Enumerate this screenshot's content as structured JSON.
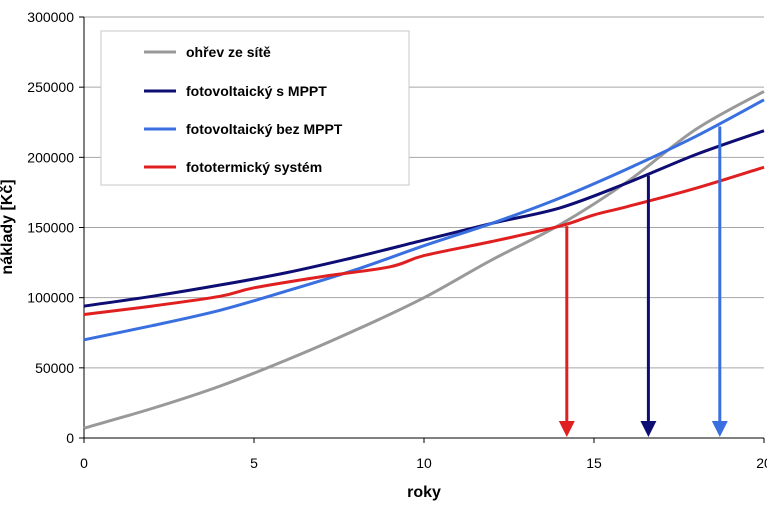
{
  "chart_data": {
    "type": "line",
    "xlabel": "roky",
    "ylabel": "náklady [Kč]",
    "xlim": [
      0,
      20
    ],
    "ylim": [
      0,
      300000
    ],
    "xticks": [
      "0",
      "5",
      "10",
      "15",
      "20"
    ],
    "yticks": [
      "0",
      "50000",
      "100000",
      "150000",
      "200000",
      "250000",
      "300000"
    ],
    "grid": "horizontal",
    "legend_position": "top-left",
    "series": [
      {
        "name": "ohřev ze sítě",
        "color": "#999999",
        "points": [
          [
            0,
            7000
          ],
          [
            2,
            21000
          ],
          [
            4,
            37000
          ],
          [
            6,
            56000
          ],
          [
            8,
            77000
          ],
          [
            10,
            100000
          ],
          [
            12,
            127000
          ],
          [
            14,
            152000
          ],
          [
            16,
            183000
          ],
          [
            18,
            220000
          ],
          [
            20,
            247000
          ]
        ]
      },
      {
        "name": "fotovoltaický s MPPT",
        "color": "#0d0d73",
        "points": [
          [
            0,
            94000
          ],
          [
            2,
            101000
          ],
          [
            4,
            109000
          ],
          [
            6,
            118000
          ],
          [
            8,
            129000
          ],
          [
            10,
            141000
          ],
          [
            12,
            153000
          ],
          [
            14,
            164000
          ],
          [
            16,
            182000
          ],
          [
            18,
            202000
          ],
          [
            20,
            219000
          ]
        ]
      },
      {
        "name": "fotovoltaický bez MPPT",
        "color": "#3a6fe0",
        "points": [
          [
            0,
            70000
          ],
          [
            2,
            80000
          ],
          [
            4,
            91000
          ],
          [
            6,
            105000
          ],
          [
            8,
            120000
          ],
          [
            10,
            137000
          ],
          [
            12,
            153000
          ],
          [
            14,
            171000
          ],
          [
            16,
            192000
          ],
          [
            18,
            215000
          ],
          [
            20,
            241000
          ]
        ]
      },
      {
        "name": "fototermický systém",
        "color": "#e02020",
        "points": [
          [
            0,
            88000
          ],
          [
            2,
            94000
          ],
          [
            4,
            101000
          ],
          [
            5,
            107000
          ],
          [
            7,
            115000
          ],
          [
            9,
            122000
          ],
          [
            10,
            130000
          ],
          [
            12,
            140000
          ],
          [
            14,
            151000
          ],
          [
            15,
            159000
          ],
          [
            16,
            165000
          ],
          [
            18,
            178000
          ],
          [
            20,
            193000
          ]
        ]
      }
    ],
    "arrows": [
      {
        "x": 14.2,
        "y_from": 151000,
        "color": "#e02020"
      },
      {
        "x": 16.6,
        "y_from": 187000,
        "color": "#0d0d73"
      },
      {
        "x": 18.7,
        "y_from": 222000,
        "color": "#3a6fe0"
      }
    ]
  }
}
